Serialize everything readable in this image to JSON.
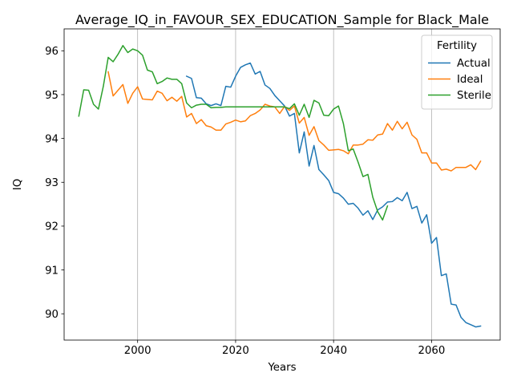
{
  "chart_data": {
    "type": "line",
    "title": "Average_IQ_in_FAVOUR_SEX_EDUCATION_Sample for Black_Male",
    "xlabel": "Years",
    "ylabel": "IQ",
    "xlim": [
      1985,
      2074
    ],
    "ylim": [
      89.4,
      96.5
    ],
    "xticks": [
      2000,
      2020,
      2040,
      2060
    ],
    "yticks": [
      90,
      91,
      92,
      93,
      94,
      95,
      96
    ],
    "grid": {
      "x": true,
      "y": false
    },
    "legend": {
      "title": "Fertility",
      "placement": "top-right"
    },
    "series": [
      {
        "name": "Actual",
        "color": "#1f77b4",
        "x": [
          2010,
          2011,
          2012,
          2013,
          2014,
          2015,
          2016,
          2017,
          2018,
          2019,
          2020,
          2021,
          2022,
          2023,
          2024,
          2025,
          2026,
          2027,
          2028,
          2029,
          2030,
          2031,
          2032,
          2033,
          2034,
          2035,
          2036,
          2037,
          2038,
          2039,
          2040,
          2041,
          2042,
          2043,
          2044,
          2045,
          2046,
          2047,
          2048,
          2049,
          2050,
          2051,
          2052,
          2053,
          2054,
          2055,
          2056,
          2057,
          2058,
          2059,
          2060,
          2061,
          2062,
          2063,
          2064,
          2065,
          2066,
          2067,
          2068,
          2069,
          2070
        ],
        "values": [
          95.42,
          95.37,
          94.93,
          94.92,
          94.79,
          94.75,
          94.79,
          94.75,
          95.19,
          95.17,
          95.42,
          95.62,
          95.68,
          95.72,
          95.47,
          95.53,
          95.22,
          95.14,
          94.98,
          94.86,
          94.74,
          94.51,
          94.57,
          93.67,
          94.15,
          93.37,
          93.84,
          93.29,
          93.17,
          93.04,
          92.77,
          92.74,
          92.64,
          92.5,
          92.52,
          92.41,
          92.25,
          92.35,
          92.15,
          92.37,
          92.44,
          92.55,
          92.56,
          92.65,
          92.58,
          92.77,
          92.4,
          92.45,
          92.07,
          92.26,
          91.61,
          91.74,
          90.87,
          90.91,
          90.22,
          90.2,
          89.92,
          89.8,
          89.75,
          89.7,
          89.72
        ]
      },
      {
        "name": "Ideal",
        "color": "#ff7f0e",
        "x": [
          1994,
          1995,
          1996,
          1997,
          1998,
          1999,
          2000,
          2001,
          2002,
          2003,
          2004,
          2005,
          2006,
          2007,
          2008,
          2009,
          2010,
          2011,
          2012,
          2013,
          2014,
          2015,
          2016,
          2017,
          2018,
          2019,
          2020,
          2021,
          2022,
          2023,
          2024,
          2025,
          2026,
          2027,
          2028,
          2029,
          2030,
          2031,
          2032,
          2033,
          2034,
          2035,
          2036,
          2037,
          2038,
          2039,
          2040,
          2041,
          2042,
          2043,
          2044,
          2045,
          2046,
          2047,
          2048,
          2049,
          2050,
          2051,
          2052,
          2053,
          2054,
          2055,
          2056,
          2057,
          2058,
          2059,
          2060,
          2061,
          2062,
          2063,
          2064,
          2065,
          2066,
          2067,
          2068,
          2069,
          2070
        ],
        "values": [
          95.52,
          94.97,
          95.1,
          95.23,
          94.8,
          95.03,
          95.18,
          94.9,
          94.89,
          94.88,
          95.08,
          95.03,
          94.86,
          94.94,
          94.85,
          94.96,
          94.49,
          94.57,
          94.34,
          94.43,
          94.29,
          94.26,
          94.19,
          94.19,
          94.33,
          94.37,
          94.42,
          94.38,
          94.4,
          94.52,
          94.57,
          94.65,
          94.78,
          94.74,
          94.72,
          94.57,
          94.73,
          94.64,
          94.74,
          94.35,
          94.48,
          94.07,
          94.27,
          93.95,
          93.85,
          93.73,
          93.74,
          93.75,
          93.72,
          93.65,
          93.85,
          93.85,
          93.87,
          93.97,
          93.96,
          94.08,
          94.1,
          94.34,
          94.19,
          94.39,
          94.22,
          94.37,
          94.08,
          93.98,
          93.67,
          93.67,
          93.44,
          93.44,
          93.28,
          93.3,
          93.26,
          93.34,
          93.34,
          93.34,
          93.4,
          93.29,
          93.48
        ]
      },
      {
        "name": "Sterile",
        "color": "#2ca02c",
        "x": [
          1988,
          1989,
          1990,
          1991,
          1992,
          1993,
          1994,
          1995,
          1996,
          1997,
          1998,
          1999,
          2000,
          2001,
          2002,
          2003,
          2004,
          2005,
          2006,
          2007,
          2008,
          2009,
          2010,
          2011,
          2012,
          2013,
          2014,
          2015,
          2016,
          2017,
          2018,
          2019,
          2020,
          2021,
          2022,
          2023,
          2024,
          2025,
          2026,
          2027,
          2028,
          2029,
          2030,
          2031,
          2032,
          2033,
          2034,
          2035,
          2036,
          2037,
          2038,
          2039,
          2040,
          2041,
          2042,
          2043,
          2044,
          2045,
          2046,
          2047,
          2048,
          2049,
          2050,
          2051
        ],
        "values": [
          94.51,
          95.11,
          95.1,
          94.78,
          94.67,
          95.19,
          95.85,
          95.75,
          95.92,
          96.12,
          95.96,
          96.04,
          96.0,
          95.9,
          95.56,
          95.52,
          95.25,
          95.3,
          95.38,
          95.35,
          95.35,
          95.25,
          94.81,
          94.7,
          94.76,
          94.78,
          94.78,
          94.7,
          94.71,
          94.71,
          94.72,
          94.72,
          94.72,
          94.72,
          94.72,
          94.72,
          94.72,
          94.72,
          94.72,
          94.72,
          94.72,
          94.72,
          94.72,
          94.68,
          94.79,
          94.53,
          94.78,
          94.48,
          94.87,
          94.81,
          94.53,
          94.52,
          94.67,
          94.74,
          94.34,
          93.72,
          93.76,
          93.46,
          93.13,
          93.18,
          92.66,
          92.33,
          92.14,
          92.46
        ]
      }
    ]
  }
}
